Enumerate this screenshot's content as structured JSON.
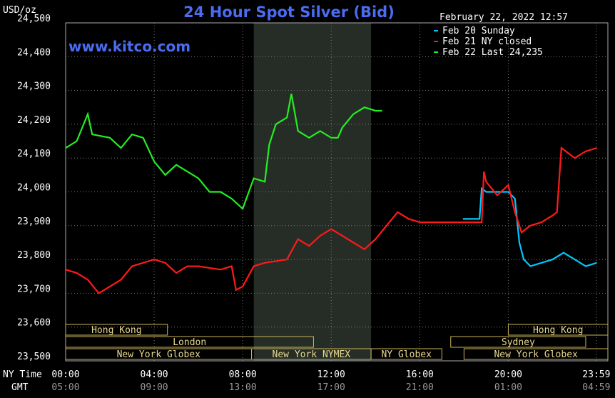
{
  "chart_data": {
    "type": "line",
    "title": "24 Hour Spot Silver (Bid)",
    "unit_label": "USD/oz",
    "timestamp": "February 22, 2022 12:57",
    "watermark": "www.kitco.com",
    "x_label_top": "NY Time",
    "x_label_bottom": "GMT",
    "xlim": [
      0,
      24.5
    ],
    "xticks": [
      {
        "value": 0,
        "label": "00:00"
      },
      {
        "value": 4,
        "label": "04:00"
      },
      {
        "value": 8,
        "label": "08:00"
      },
      {
        "value": 12,
        "label": "12:00"
      },
      {
        "value": 16,
        "label": "16:00"
      },
      {
        "value": 20,
        "label": "20:00"
      },
      {
        "value": 23.98,
        "label": "23:59"
      }
    ],
    "gmt_labels": [
      "05:00",
      "09:00",
      "13:00",
      "17:00",
      "21:00",
      "01:00",
      "04:59"
    ],
    "ylim": [
      23500,
      24500
    ],
    "yticks": [
      {
        "value": 23500,
        "label": "23,500"
      },
      {
        "value": 23600,
        "label": "23,600"
      },
      {
        "value": 23700,
        "label": "23,700"
      },
      {
        "value": 23800,
        "label": "23,800"
      },
      {
        "value": 23900,
        "label": "23,900"
      },
      {
        "value": 24000,
        "label": "24,000"
      },
      {
        "value": 24100,
        "label": "24,100"
      },
      {
        "value": 24200,
        "label": "24,200"
      },
      {
        "value": 24300,
        "label": "24,300"
      },
      {
        "value": 24400,
        "label": "24,400"
      },
      {
        "value": 24500,
        "label": "24,500"
      }
    ],
    "grid": true,
    "highlight_x": [
      8.5,
      13.8
    ],
    "sessions": [
      [
        {
          "name": "Hong Kong",
          "start": 0,
          "end": 4.6
        },
        {
          "name": "Hong Kong",
          "start": 20,
          "end": 24.5
        }
      ],
      [
        {
          "name": "London",
          "start": 0,
          "end": 11.2
        },
        {
          "name": "Sydney",
          "start": 17.4,
          "end": 23.5
        }
      ],
      [
        {
          "name": "New York Globex",
          "start": 0,
          "end": 8.4
        },
        {
          "name": "New York NYMEX",
          "start": 8.4,
          "end": 13.8
        },
        {
          "name": "NY Globex",
          "start": 13.8,
          "end": 17.0
        },
        {
          "name": "New York Globex",
          "start": 18.0,
          "end": 24.5
        }
      ]
    ],
    "series": [
      {
        "name": "Feb 20 Sunday",
        "color": "#00c8ff",
        "x": [
          17.95,
          18.7,
          18.8,
          19,
          19.5,
          20,
          20.3,
          20.5,
          20.7,
          21,
          21.5,
          22,
          22.5,
          23,
          23.5,
          24
        ],
        "values": [
          23920,
          23920,
          24010,
          24000,
          24000,
          24000,
          23980,
          23850,
          23800,
          23780,
          23790,
          23800,
          23820,
          23800,
          23780,
          23790
        ]
      },
      {
        "name": "Feb 21 NY closed",
        "color": "#ff1a1a",
        "x": [
          0,
          0.5,
          1,
          1.5,
          2,
          2.5,
          3,
          3.5,
          4,
          4.5,
          5,
          5.5,
          6,
          7,
          7.5,
          7.7,
          8,
          8.5,
          9,
          10,
          10.5,
          11,
          11.5,
          12,
          12.5,
          13,
          13.5,
          14,
          14.5,
          15,
          15.5,
          16,
          18.8,
          18.9,
          19,
          19.5,
          20,
          20.3,
          20.6,
          21,
          21.5,
          22,
          22.2,
          22.4,
          23,
          23.5,
          24
        ],
        "values": [
          23770,
          23760,
          23740,
          23700,
          23720,
          23740,
          23780,
          23790,
          23800,
          23790,
          23760,
          23780,
          23780,
          23770,
          23780,
          23710,
          23720,
          23780,
          23790,
          23800,
          23860,
          23840,
          23870,
          23890,
          23870,
          23850,
          23830,
          23860,
          23900,
          23940,
          23920,
          23910,
          23910,
          24060,
          24030,
          23990,
          24020,
          23940,
          23880,
          23900,
          23910,
          23930,
          23940,
          24130,
          24100,
          24120,
          24130
        ]
      },
      {
        "name": "Feb 22 Last 24,235",
        "color": "#22ee22",
        "x": [
          0,
          0.5,
          1,
          1.2,
          2,
          2.5,
          3,
          3.5,
          4,
          4.5,
          5,
          5.5,
          6,
          6.5,
          7,
          7.5,
          8,
          8.5,
          9,
          9.2,
          9.5,
          10,
          10.2,
          10.5,
          11,
          11.5,
          12,
          12.3,
          12.5,
          13,
          13.5,
          14,
          14.3
        ],
        "values": [
          24130,
          24150,
          24230,
          24170,
          24160,
          24130,
          24170,
          24160,
          24090,
          24050,
          24080,
          24060,
          24040,
          24000,
          24000,
          23980,
          23950,
          24040,
          24030,
          24140,
          24200,
          24220,
          24290,
          24180,
          24160,
          24180,
          24160,
          24160,
          24190,
          24230,
          24250,
          24240,
          24240
        ]
      }
    ]
  }
}
